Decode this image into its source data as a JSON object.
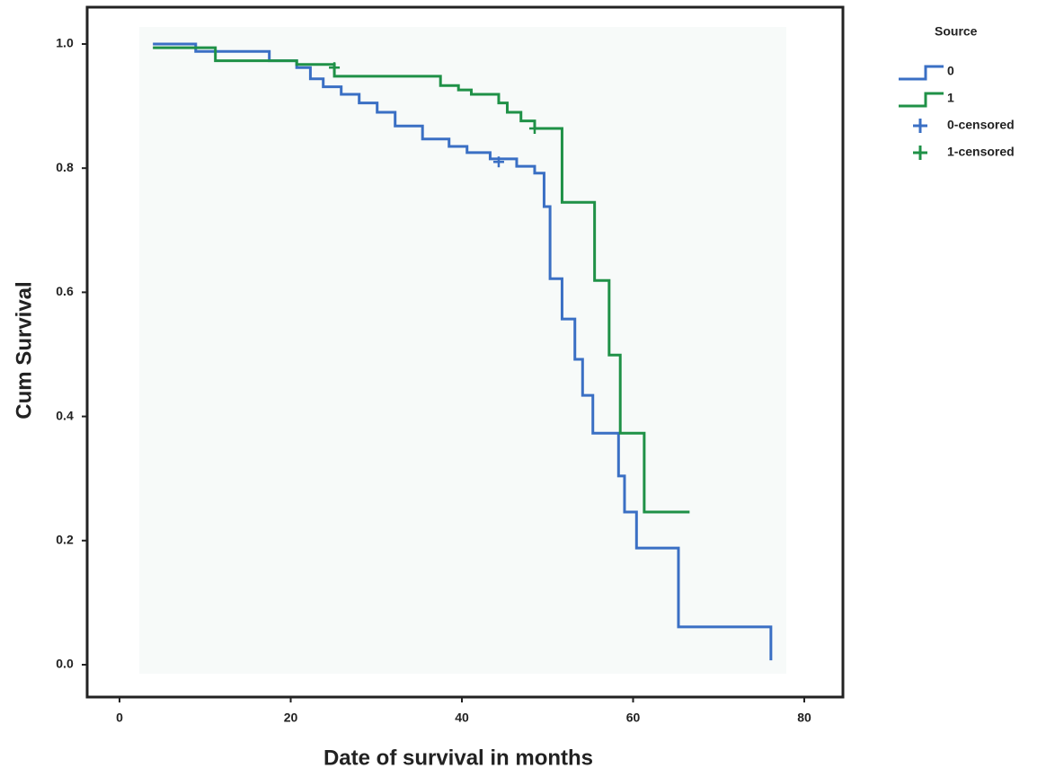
{
  "chart_data": {
    "type": "step",
    "x_label": "Date of survival in months",
    "y_label": "Cum Survival",
    "legend_title": "Source",
    "legend_position": "outside-right",
    "xlim": [
      0,
      80
    ],
    "ylim": [
      0,
      1
    ],
    "xticks": [
      0,
      20,
      40,
      60,
      80
    ],
    "yticks": [
      {
        "value": 1,
        "label": "1.0"
      },
      0.8,
      0.6,
      0.4,
      0.2,
      {
        "value": 0,
        "label": "0.0"
      }
    ],
    "series": [
      {
        "name": "0",
        "color": "#3a6fc4",
        "marker": "step",
        "x": [
          3.9,
          8.9,
          17.5,
          20.7,
          22.3,
          23.8,
          25.9,
          28,
          30.1,
          32.2,
          35.4,
          38.5,
          40.6,
          43.3,
          46.4,
          48.5,
          49.6,
          50.3,
          51.7,
          53.2,
          54.1,
          55.3,
          58.3,
          59,
          60.4,
          65.3,
          76.1
        ],
        "values": [
          1.0,
          0.988,
          0.973,
          0.962,
          0.944,
          0.931,
          0.919,
          0.905,
          0.89,
          0.868,
          0.847,
          0.835,
          0.825,
          0.815,
          0.803,
          0.792,
          0.738,
          0.622,
          0.557,
          0.492,
          0.434,
          0.373,
          0.304,
          0.246,
          0.188,
          0.061,
          0.007
        ]
      },
      {
        "name": "1",
        "color": "#1f9147",
        "marker": "step",
        "x": [
          3.9,
          11.2,
          20.7,
          25.1,
          37.5,
          39.6,
          41.1,
          44.3,
          45.3,
          46.9,
          48.5,
          51.7,
          55.5,
          57.2,
          58.5,
          61.3,
          66.6
        ],
        "values": [
          0.994,
          0.973,
          0.967,
          0.948,
          0.933,
          0.926,
          0.919,
          0.905,
          0.89,
          0.876,
          0.864,
          0.745,
          0.619,
          0.499,
          0.373,
          0.246,
          0.246
        ]
      },
      {
        "name": "0-censored",
        "color": "#3a6fc4",
        "marker": "plus",
        "x": [
          44.3
        ],
        "values": [
          0.81
        ]
      },
      {
        "name": "1-censored",
        "color": "#1f9147",
        "marker": "plus",
        "x": [
          25.1,
          48.5
        ],
        "values": [
          0.962,
          0.864
        ]
      }
    ]
  }
}
